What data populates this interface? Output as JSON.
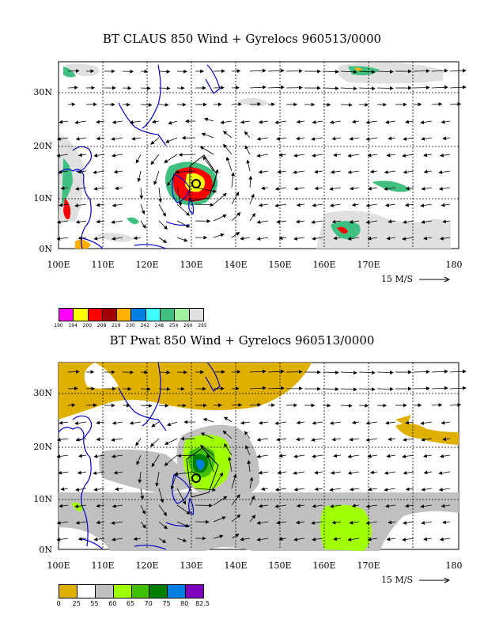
{
  "panel1": {
    "title": "BT CLAUS 850 Wind + Gyrelocs 960513/0000",
    "xticks": [
      "100E",
      "110E",
      "120E",
      "130E",
      "140E",
      "150E",
      "160E",
      "170E",
      "180"
    ],
    "yticks": [
      "0N",
      "10N",
      "20N",
      "30N"
    ],
    "ref_label": "15 M/S",
    "colorbar": {
      "colors": [
        "#ff00ff",
        "#ffff00",
        "#ff0000",
        "#a00000",
        "#ffb000",
        "#0080e0",
        "#40ffff",
        "#40c080",
        "#a0f0a0",
        "#e0e0e0"
      ],
      "labels": [
        "190",
        "194",
        "200",
        "208",
        "219",
        "230",
        "242",
        "248",
        "254",
        "260",
        "265"
      ]
    }
  },
  "panel2": {
    "title": "BT Pwat 850 Wind + Gyrelocs 960513/0000",
    "xticks": [
      "100E",
      "110E",
      "120E",
      "130E",
      "140E",
      "150E",
      "160E",
      "170E",
      "180"
    ],
    "yticks": [
      "0N",
      "10N",
      "20N",
      "30N"
    ],
    "ref_label": "15 M/S",
    "colorbar": {
      "colors": [
        "#e0b000",
        "#ffffff",
        "#c0c0c0",
        "#a0ff00",
        "#40c000",
        "#008000",
        "#0080e0",
        "#8000c0"
      ],
      "labels": [
        "0",
        "25",
        "55",
        "60",
        "65",
        "70",
        "75",
        "80",
        "82.5"
      ]
    }
  },
  "icons": {
    "reference_arrow": "long-right-arrow",
    "storm": "cyclone-symbol"
  }
}
